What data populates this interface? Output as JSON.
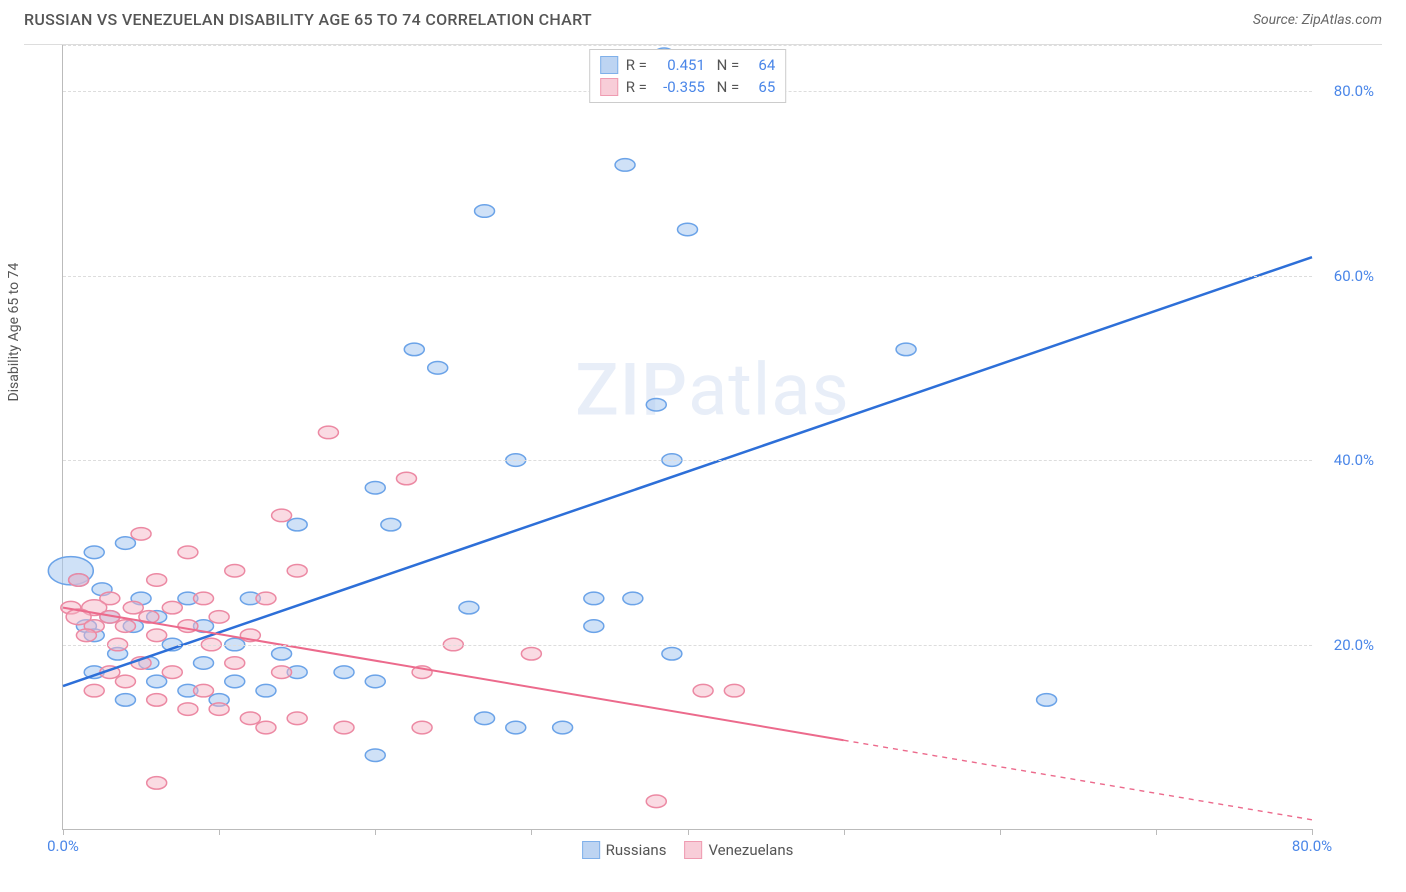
{
  "title": "RUSSIAN VS VENEZUELAN DISABILITY AGE 65 TO 74 CORRELATION CHART",
  "source_label": "Source: ZipAtlas.com",
  "y_axis_label": "Disability Age 65 to 74",
  "watermark": "ZIPatlas",
  "chart": {
    "type": "scatter",
    "background_color": "#ffffff",
    "grid_color": "#dddddd",
    "axis_color": "#bbbbbb",
    "tick_label_color": "#4a86e8",
    "xlim": [
      0,
      80
    ],
    "ylim": [
      0,
      85
    ],
    "y_gridlines": [
      20,
      40,
      60,
      80,
      85
    ],
    "y_tick_labels": [
      {
        "value": 20,
        "label": "20.0%"
      },
      {
        "value": 40,
        "label": "40.0%"
      },
      {
        "value": 60,
        "label": "60.0%"
      },
      {
        "value": 80,
        "label": "80.0%"
      }
    ],
    "x_tick_marks": [
      0,
      10,
      20,
      30,
      40,
      50,
      60,
      70,
      80
    ],
    "x_tick_labels": [
      {
        "value": 0,
        "label": "0.0%"
      },
      {
        "value": 80,
        "label": "80.0%"
      }
    ],
    "series": [
      {
        "name": "Russians",
        "color_fill": "#a8c8f0",
        "color_stroke": "#6ba3e8",
        "fill_opacity": 0.55,
        "legend_swatch_fill": "#bdd4f2",
        "legend_swatch_stroke": "#7fb0ea",
        "r_value": "0.451",
        "n_value": "64",
        "trendline": {
          "x1": 0,
          "y1": 15.5,
          "x2": 80,
          "y2": 62,
          "color": "#2d6fd8",
          "width": 2.5,
          "solid_until_x": 80
        },
        "points": [
          {
            "x": 0.5,
            "y": 28,
            "r": 18
          },
          {
            "x": 38.5,
            "y": 84,
            "r": 8
          },
          {
            "x": 36,
            "y": 72,
            "r": 8
          },
          {
            "x": 40,
            "y": 65,
            "r": 8
          },
          {
            "x": 27,
            "y": 67,
            "r": 8
          },
          {
            "x": 54,
            "y": 52,
            "r": 8
          },
          {
            "x": 22.5,
            "y": 52,
            "r": 8
          },
          {
            "x": 24,
            "y": 50,
            "r": 8
          },
          {
            "x": 38,
            "y": 46,
            "r": 8
          },
          {
            "x": 29,
            "y": 40,
            "r": 8
          },
          {
            "x": 39,
            "y": 40,
            "r": 8
          },
          {
            "x": 20,
            "y": 37,
            "r": 8
          },
          {
            "x": 15,
            "y": 33,
            "r": 8
          },
          {
            "x": 21,
            "y": 33,
            "r": 8
          },
          {
            "x": 4,
            "y": 31,
            "r": 8
          },
          {
            "x": 2,
            "y": 30,
            "r": 8
          },
          {
            "x": 1,
            "y": 27,
            "r": 8
          },
          {
            "x": 2.5,
            "y": 26,
            "r": 8
          },
          {
            "x": 5,
            "y": 25,
            "r": 8
          },
          {
            "x": 8,
            "y": 25,
            "r": 8
          },
          {
            "x": 12,
            "y": 25,
            "r": 8
          },
          {
            "x": 34,
            "y": 25,
            "r": 8
          },
          {
            "x": 36.5,
            "y": 25,
            "r": 8
          },
          {
            "x": 26,
            "y": 24,
            "r": 8
          },
          {
            "x": 3,
            "y": 23,
            "r": 8
          },
          {
            "x": 6,
            "y": 23,
            "r": 8
          },
          {
            "x": 1.5,
            "y": 22,
            "r": 8
          },
          {
            "x": 4.5,
            "y": 22,
            "r": 8
          },
          {
            "x": 9,
            "y": 22,
            "r": 8
          },
          {
            "x": 34,
            "y": 22,
            "r": 8
          },
          {
            "x": 2,
            "y": 21,
            "r": 8
          },
          {
            "x": 7,
            "y": 20,
            "r": 8
          },
          {
            "x": 11,
            "y": 20,
            "r": 8
          },
          {
            "x": 3.5,
            "y": 19,
            "r": 8
          },
          {
            "x": 14,
            "y": 19,
            "r": 8
          },
          {
            "x": 39,
            "y": 19,
            "r": 8
          },
          {
            "x": 5.5,
            "y": 18,
            "r": 8
          },
          {
            "x": 9,
            "y": 18,
            "r": 8
          },
          {
            "x": 2,
            "y": 17,
            "r": 8
          },
          {
            "x": 15,
            "y": 17,
            "r": 8
          },
          {
            "x": 18,
            "y": 17,
            "r": 8
          },
          {
            "x": 6,
            "y": 16,
            "r": 8
          },
          {
            "x": 11,
            "y": 16,
            "r": 8
          },
          {
            "x": 20,
            "y": 16,
            "r": 8
          },
          {
            "x": 8,
            "y": 15,
            "r": 8
          },
          {
            "x": 13,
            "y": 15,
            "r": 8
          },
          {
            "x": 63,
            "y": 14,
            "r": 8
          },
          {
            "x": 4,
            "y": 14,
            "r": 8
          },
          {
            "x": 10,
            "y": 14,
            "r": 8
          },
          {
            "x": 27,
            "y": 12,
            "r": 8
          },
          {
            "x": 29,
            "y": 11,
            "r": 8
          },
          {
            "x": 32,
            "y": 11,
            "r": 8
          },
          {
            "x": 20,
            "y": 8,
            "r": 8
          }
        ]
      },
      {
        "name": "Venezuelans",
        "color_fill": "#f5b8c8",
        "color_stroke": "#ec89a3",
        "fill_opacity": 0.5,
        "legend_swatch_fill": "#f8cdd8",
        "legend_swatch_stroke": "#ef9bb1",
        "r_value": "-0.355",
        "n_value": "65",
        "trendline": {
          "x1": 0,
          "y1": 24,
          "x2": 80,
          "y2": 1,
          "color": "#ec6a8c",
          "width": 2,
          "solid_until_x": 50
        },
        "points": [
          {
            "x": 17,
            "y": 43,
            "r": 8
          },
          {
            "x": 22,
            "y": 38,
            "r": 8
          },
          {
            "x": 14,
            "y": 34,
            "r": 8
          },
          {
            "x": 5,
            "y": 32,
            "r": 8
          },
          {
            "x": 8,
            "y": 30,
            "r": 8
          },
          {
            "x": 11,
            "y": 28,
            "r": 8
          },
          {
            "x": 15,
            "y": 28,
            "r": 8
          },
          {
            "x": 1,
            "y": 27,
            "r": 8
          },
          {
            "x": 6,
            "y": 27,
            "r": 8
          },
          {
            "x": 3,
            "y": 25,
            "r": 8
          },
          {
            "x": 9,
            "y": 25,
            "r": 8
          },
          {
            "x": 13,
            "y": 25,
            "r": 8
          },
          {
            "x": 0.5,
            "y": 24,
            "r": 8
          },
          {
            "x": 2,
            "y": 24,
            "r": 10
          },
          {
            "x": 4.5,
            "y": 24,
            "r": 8
          },
          {
            "x": 7,
            "y": 24,
            "r": 8
          },
          {
            "x": 1,
            "y": 23,
            "r": 10
          },
          {
            "x": 3,
            "y": 23,
            "r": 8
          },
          {
            "x": 5.5,
            "y": 23,
            "r": 8
          },
          {
            "x": 10,
            "y": 23,
            "r": 8
          },
          {
            "x": 2,
            "y": 22,
            "r": 8
          },
          {
            "x": 4,
            "y": 22,
            "r": 8
          },
          {
            "x": 8,
            "y": 22,
            "r": 8
          },
          {
            "x": 1.5,
            "y": 21,
            "r": 8
          },
          {
            "x": 6,
            "y": 21,
            "r": 8
          },
          {
            "x": 12,
            "y": 21,
            "r": 8
          },
          {
            "x": 3.5,
            "y": 20,
            "r": 8
          },
          {
            "x": 9.5,
            "y": 20,
            "r": 8
          },
          {
            "x": 25,
            "y": 20,
            "r": 8
          },
          {
            "x": 30,
            "y": 19,
            "r": 8
          },
          {
            "x": 5,
            "y": 18,
            "r": 8
          },
          {
            "x": 11,
            "y": 18,
            "r": 8
          },
          {
            "x": 3,
            "y": 17,
            "r": 8
          },
          {
            "x": 7,
            "y": 17,
            "r": 8
          },
          {
            "x": 14,
            "y": 17,
            "r": 8
          },
          {
            "x": 23,
            "y": 17,
            "r": 8
          },
          {
            "x": 4,
            "y": 16,
            "r": 8
          },
          {
            "x": 9,
            "y": 15,
            "r": 8
          },
          {
            "x": 41,
            "y": 15,
            "r": 8
          },
          {
            "x": 43,
            "y": 15,
            "r": 8
          },
          {
            "x": 2,
            "y": 15,
            "r": 8
          },
          {
            "x": 6,
            "y": 14,
            "r": 8
          },
          {
            "x": 10,
            "y": 13,
            "r": 8
          },
          {
            "x": 8,
            "y": 13,
            "r": 8
          },
          {
            "x": 12,
            "y": 12,
            "r": 8
          },
          {
            "x": 15,
            "y": 12,
            "r": 8
          },
          {
            "x": 13,
            "y": 11,
            "r": 8
          },
          {
            "x": 18,
            "y": 11,
            "r": 8
          },
          {
            "x": 23,
            "y": 11,
            "r": 8
          },
          {
            "x": 6,
            "y": 5,
            "r": 8
          },
          {
            "x": 38,
            "y": 3,
            "r": 8
          }
        ]
      }
    ],
    "bottom_legend": [
      {
        "label": "Russians",
        "fill": "#bdd4f2",
        "stroke": "#7fb0ea"
      },
      {
        "label": "Venezuelans",
        "fill": "#f8cdd8",
        "stroke": "#ef9bb1"
      }
    ]
  }
}
